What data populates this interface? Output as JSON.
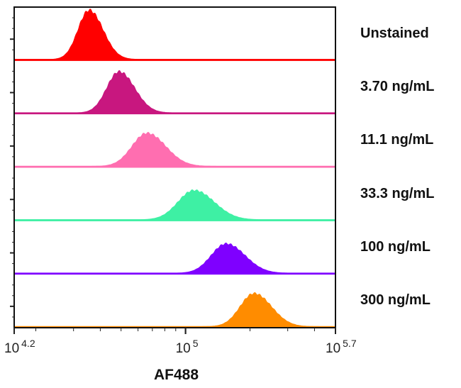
{
  "chart_data": {
    "type": "area",
    "title": "",
    "xlabel": "AF488",
    "ylabel": "",
    "xscale": "log10",
    "xlim_log10": [
      4.2,
      5.7
    ],
    "x_ticks": [
      {
        "base": "10",
        "exp": "4.2",
        "log": 4.2
      },
      {
        "base": "10",
        "exp": "5",
        "log": 5.0
      },
      {
        "base": "10",
        "exp": "5.7",
        "log": 5.7
      }
    ],
    "series": [
      {
        "name": "Unstained",
        "color": "#ff0000",
        "peak_log10": 4.55,
        "sigma_log10": 0.052,
        "rel_height": 0.92
      },
      {
        "name": "3.70 ng/mL",
        "color": "#c8177f",
        "peak_log10": 4.69,
        "sigma_log10": 0.058,
        "rel_height": 0.77
      },
      {
        "name": "11.1 ng/mL",
        "color": "#ff6eb0",
        "peak_log10": 4.82,
        "sigma_log10": 0.07,
        "rel_height": 0.62
      },
      {
        "name": "33.3 ng/mL",
        "color": "#3ef0a4",
        "peak_log10": 5.04,
        "sigma_log10": 0.075,
        "rel_height": 0.55
      },
      {
        "name": "100 ng/mL",
        "color": "#7f00ff",
        "peak_log10": 5.19,
        "sigma_log10": 0.07,
        "rel_height": 0.55
      },
      {
        "name": "300 ng/mL",
        "color": "#ff8c00",
        "peak_log10": 5.32,
        "sigma_log10": 0.065,
        "rel_height": 0.62
      }
    ],
    "grid": false,
    "legend": "right-of-each-lane"
  }
}
